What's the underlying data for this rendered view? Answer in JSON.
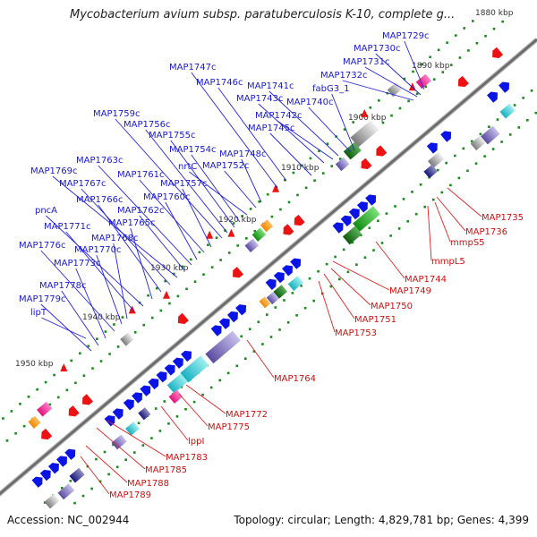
{
  "title": "Mycobacterium avium subsp. paratuberculosis K-10, complete g...",
  "footer": {
    "accession": "Accession: NC_002944",
    "summary": "Topology: circular; Length: 4,829,781 bp; Genes: 4,399"
  },
  "colors": {
    "forward_label": "#1a1acc",
    "reverse_label": "#cc1111",
    "forward_arrow": "#0a14e6",
    "reverse_arrow": "#ee1111",
    "backbone": "#888888",
    "tick_dots": "#1a8a1a"
  },
  "scale_labels": [
    "1880 kbp",
    "1890 kbp",
    "1900 kbp",
    "1910 kbp",
    "1920 kbp",
    "1930 kbp",
    "1940 kbp",
    "1950 kbp"
  ],
  "forward_genes": [
    "MAP1729c",
    "MAP1730c",
    "MAP1731c",
    "MAP1732c",
    "fabG3_1",
    "MAP1740c",
    "MAP1741c",
    "MAP1742c",
    "MAP1743c",
    "MAP1745c",
    "MAP1746c",
    "MAP1747c",
    "MAP1748c",
    "MAP1752c",
    "nrtC",
    "MAP1754c",
    "MAP1755c",
    "MAP1756c",
    "MAP1759c",
    "MAP1757c",
    "MAP1761c",
    "MAP1760c",
    "MAP1763c",
    "MAP1762c",
    "MAP1769c",
    "MAP1767c",
    "MAP1766c",
    "MAP1765c",
    "pncA",
    "MAP1771c",
    "MAP1768c",
    "MAP1770c",
    "MAP1776c",
    "MAP1773c",
    "MAP1778c",
    "MAP1779c",
    "lipT"
  ],
  "reverse_genes": [
    "MAP1735",
    "MAP1736",
    "mmpS5",
    "mmpL5",
    "MAP1744",
    "MAP1749",
    "MAP1750",
    "MAP1751",
    "MAP1753",
    "MAP1764",
    "MAP1772",
    "MAP1775",
    "lppI",
    "MAP1783",
    "MAP1785",
    "MAP1788",
    "MAP1789"
  ]
}
